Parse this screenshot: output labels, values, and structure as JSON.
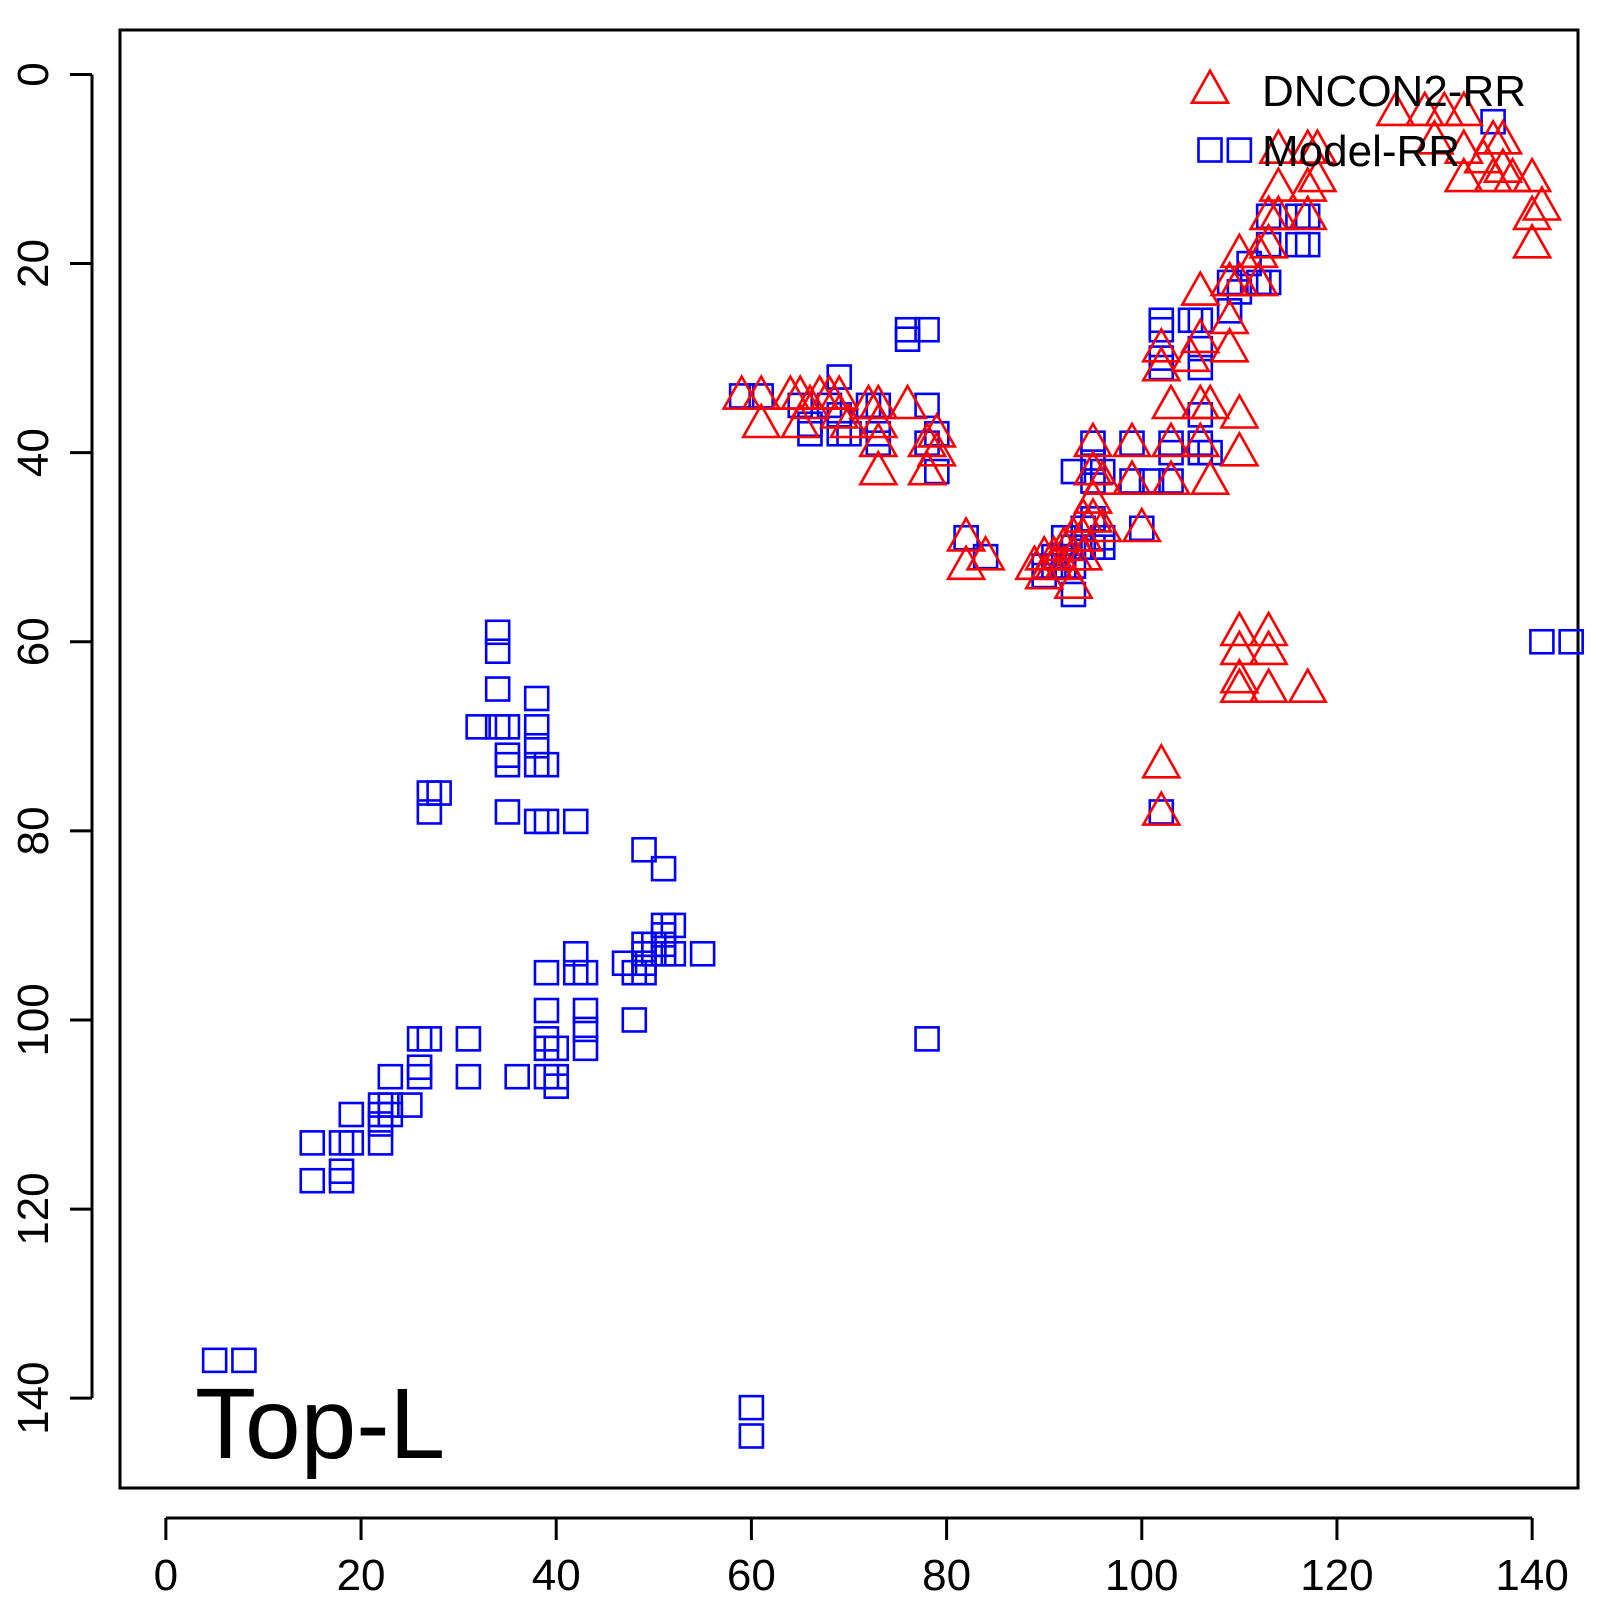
{
  "chart_data": {
    "type": "scatter",
    "title": "",
    "xlabel": "",
    "ylabel": "",
    "xlim": [
      -4.7,
      144.7
    ],
    "ylim": [
      149.5,
      -4.7
    ],
    "y_inverted": true,
    "x_ticks": [
      0,
      20,
      40,
      60,
      80,
      100,
      120,
      140
    ],
    "y_ticks": [
      0,
      20,
      40,
      60,
      80,
      100,
      120,
      140
    ],
    "grid": false,
    "legend_position": "top-right",
    "annotation": "Top-L",
    "series": [
      {
        "name": "DNCON2-RR",
        "marker": "triangle",
        "color": "#ff0000",
        "points": [
          [
            59,
            34
          ],
          [
            61,
            34
          ],
          [
            61,
            37
          ],
          [
            64,
            34
          ],
          [
            65,
            34
          ],
          [
            65,
            37
          ],
          [
            66,
            35
          ],
          [
            67,
            34
          ],
          [
            68,
            34
          ],
          [
            69,
            34
          ],
          [
            69,
            36
          ],
          [
            70,
            37
          ],
          [
            72,
            35
          ],
          [
            73,
            35
          ],
          [
            73,
            37
          ],
          [
            73,
            39
          ],
          [
            73,
            42
          ],
          [
            76,
            35
          ],
          [
            78,
            39
          ],
          [
            78,
            42
          ],
          [
            79,
            38
          ],
          [
            79,
            40
          ],
          [
            82,
            49
          ],
          [
            82,
            52
          ],
          [
            84,
            51
          ],
          [
            89,
            52
          ],
          [
            90,
            51
          ],
          [
            90,
            53
          ],
          [
            91,
            51
          ],
          [
            91,
            52
          ],
          [
            92,
            50
          ],
          [
            92,
            52
          ],
          [
            93,
            49
          ],
          [
            93,
            51
          ],
          [
            93,
            54
          ],
          [
            94,
            47
          ],
          [
            94,
            49
          ],
          [
            94,
            51
          ],
          [
            95,
            39
          ],
          [
            95,
            42
          ],
          [
            95,
            45
          ],
          [
            95,
            47
          ],
          [
            96,
            43
          ],
          [
            96,
            48
          ],
          [
            99,
            39
          ],
          [
            99,
            43
          ],
          [
            100,
            48
          ],
          [
            102,
            29
          ],
          [
            102,
            31
          ],
          [
            102,
            73
          ],
          [
            102,
            78
          ],
          [
            103,
            35
          ],
          [
            103,
            39
          ],
          [
            103,
            43
          ],
          [
            105,
            30
          ],
          [
            106,
            23
          ],
          [
            106,
            28
          ],
          [
            106,
            35
          ],
          [
            106,
            39
          ],
          [
            107,
            35
          ],
          [
            107,
            43
          ],
          [
            109,
            22
          ],
          [
            109,
            26
          ],
          [
            109,
            29
          ],
          [
            110,
            19
          ],
          [
            110,
            22
          ],
          [
            110,
            36
          ],
          [
            110,
            40
          ],
          [
            110,
            59
          ],
          [
            110,
            61
          ],
          [
            110,
            64
          ],
          [
            110,
            65
          ],
          [
            112,
            19
          ],
          [
            112,
            22
          ],
          [
            113,
            15
          ],
          [
            113,
            18
          ],
          [
            113,
            59
          ],
          [
            113,
            61
          ],
          [
            113,
            65
          ],
          [
            114,
            8
          ],
          [
            114,
            12
          ],
          [
            114,
            15
          ],
          [
            117,
            8
          ],
          [
            117,
            12
          ],
          [
            117,
            15
          ],
          [
            117,
            65
          ],
          [
            118,
            8
          ],
          [
            118,
            11
          ],
          [
            126,
            4
          ],
          [
            129,
            4
          ],
          [
            130,
            7
          ],
          [
            131,
            4
          ],
          [
            133,
            4
          ],
          [
            133,
            8
          ],
          [
            133,
            11
          ],
          [
            135,
            9
          ],
          [
            136,
            7
          ],
          [
            136,
            11
          ],
          [
            137,
            7
          ],
          [
            137,
            10
          ],
          [
            138,
            11
          ],
          [
            140,
            11
          ],
          [
            140,
            15
          ],
          [
            140,
            18
          ],
          [
            141,
            14
          ]
        ]
      },
      {
        "name": "Model-RR",
        "marker": "square",
        "color": "#0000ff",
        "points": [
          [
            5,
            136
          ],
          [
            8,
            136
          ],
          [
            15,
            113
          ],
          [
            15,
            117
          ],
          [
            18,
            113
          ],
          [
            18,
            116
          ],
          [
            18,
            117
          ],
          [
            19,
            110
          ],
          [
            19,
            113
          ],
          [
            22,
            109
          ],
          [
            22,
            110
          ],
          [
            22,
            111
          ],
          [
            22,
            113
          ],
          [
            23,
            106
          ],
          [
            23,
            109
          ],
          [
            23,
            110
          ],
          [
            25,
            109
          ],
          [
            26,
            102
          ],
          [
            26,
            105
          ],
          [
            26,
            106
          ],
          [
            27,
            76
          ],
          [
            27,
            78
          ],
          [
            27,
            102
          ],
          [
            28,
            76
          ],
          [
            31,
            102
          ],
          [
            31,
            106
          ],
          [
            32,
            69
          ],
          [
            34,
            59
          ],
          [
            34,
            61
          ],
          [
            34,
            65
          ],
          [
            34,
            69
          ],
          [
            35,
            69
          ],
          [
            35,
            72
          ],
          [
            35,
            73
          ],
          [
            35,
            78
          ],
          [
            36,
            106
          ],
          [
            38,
            66
          ],
          [
            38,
            69
          ],
          [
            38,
            71
          ],
          [
            38,
            73
          ],
          [
            38,
            79
          ],
          [
            39,
            73
          ],
          [
            39,
            79
          ],
          [
            39,
            95
          ],
          [
            39,
            99
          ],
          [
            39,
            102
          ],
          [
            39,
            103
          ],
          [
            39,
            106
          ],
          [
            40,
            103
          ],
          [
            40,
            106
          ],
          [
            40,
            107
          ],
          [
            42,
            79
          ],
          [
            42,
            93
          ],
          [
            42,
            95
          ],
          [
            43,
            95
          ],
          [
            43,
            99
          ],
          [
            43,
            101
          ],
          [
            43,
            103
          ],
          [
            47,
            94
          ],
          [
            48,
            95
          ],
          [
            48,
            100
          ],
          [
            49,
            82
          ],
          [
            49,
            92
          ],
          [
            49,
            93
          ],
          [
            49,
            94
          ],
          [
            49,
            95
          ],
          [
            50,
            92
          ],
          [
            50,
            93
          ],
          [
            51,
            84
          ],
          [
            51,
            90
          ],
          [
            51,
            91
          ],
          [
            51,
            92
          ],
          [
            51,
            93
          ],
          [
            52,
            90
          ],
          [
            52,
            93
          ],
          [
            55,
            93
          ],
          [
            59,
            34
          ],
          [
            60,
            141
          ],
          [
            60,
            144
          ],
          [
            61,
            34
          ],
          [
            65,
            35
          ],
          [
            66,
            37
          ],
          [
            66,
            38
          ],
          [
            68,
            35
          ],
          [
            69,
            32
          ],
          [
            69,
            36
          ],
          [
            69,
            38
          ],
          [
            70,
            38
          ],
          [
            72,
            35
          ],
          [
            73,
            35
          ],
          [
            73,
            38
          ],
          [
            73,
            39
          ],
          [
            76,
            27
          ],
          [
            76,
            28
          ],
          [
            78,
            27
          ],
          [
            78,
            35
          ],
          [
            78,
            39
          ],
          [
            78,
            102
          ],
          [
            79,
            38
          ],
          [
            79,
            42
          ],
          [
            82,
            49
          ],
          [
            84,
            51
          ],
          [
            90,
            52
          ],
          [
            90,
            53
          ],
          [
            91,
            51
          ],
          [
            91,
            52
          ],
          [
            92,
            49
          ],
          [
            92,
            51
          ],
          [
            92,
            52
          ],
          [
            93,
            42
          ],
          [
            93,
            50
          ],
          [
            93,
            52
          ],
          [
            93,
            55
          ],
          [
            94,
            48
          ],
          [
            94,
            50
          ],
          [
            95,
            39
          ],
          [
            95,
            41
          ],
          [
            95,
            43
          ],
          [
            95,
            47
          ],
          [
            95,
            50
          ],
          [
            96,
            42
          ],
          [
            96,
            49
          ],
          [
            96,
            50
          ],
          [
            99,
            39
          ],
          [
            99,
            43
          ],
          [
            100,
            48
          ],
          [
            101,
            43
          ],
          [
            102,
            26
          ],
          [
            102,
            27
          ],
          [
            102,
            30
          ],
          [
            102,
            31
          ],
          [
            102,
            78
          ],
          [
            103,
            39
          ],
          [
            103,
            40
          ],
          [
            103,
            43
          ],
          [
            105,
            26
          ],
          [
            106,
            26
          ],
          [
            106,
            29
          ],
          [
            106,
            31
          ],
          [
            106,
            36
          ],
          [
            106,
            39
          ],
          [
            106,
            40
          ],
          [
            107,
            40
          ],
          [
            109,
            22
          ],
          [
            109,
            25
          ],
          [
            110,
            8
          ],
          [
            110,
            23
          ],
          [
            111,
            20
          ],
          [
            112,
            22
          ],
          [
            113,
            15
          ],
          [
            113,
            18
          ],
          [
            113,
            22
          ],
          [
            116,
            15
          ],
          [
            116,
            18
          ],
          [
            117,
            15
          ],
          [
            117,
            18
          ],
          [
            136,
            5
          ],
          [
            141,
            60
          ],
          [
            144,
            60
          ]
        ]
      }
    ]
  },
  "colors": {
    "DNCON2-RR": "#ff0000",
    "Model-RR": "#0000ff"
  }
}
